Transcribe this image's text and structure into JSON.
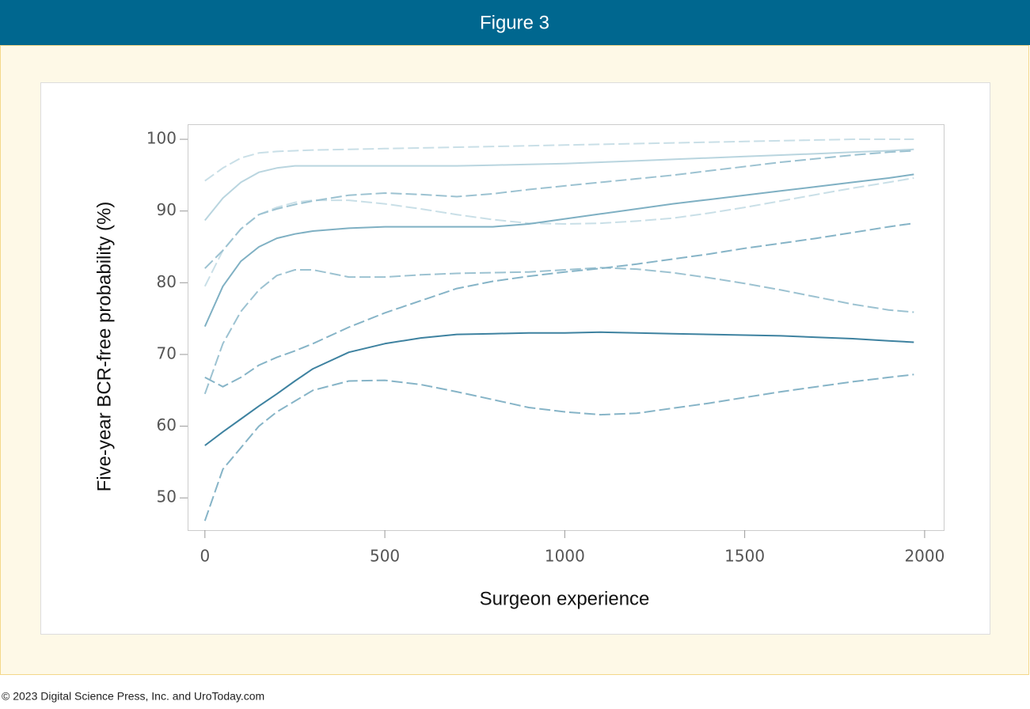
{
  "chart_data": {
    "type": "line",
    "title": "Figure 3",
    "xlabel": "Surgeon experience",
    "ylabel": "Five-year BCR-free probability (%)",
    "x": [
      0,
      50,
      100,
      150,
      200,
      250,
      300,
      400,
      500,
      600,
      700,
      800,
      900,
      1000,
      1100,
      1200,
      1300,
      1400,
      1500,
      1600,
      1700,
      1800,
      1900,
      1970
    ],
    "series": [
      {
        "color": "#b9d5df",
        "dash": false,
        "values": [
          88.7,
          91.8,
          94,
          95.4,
          96,
          96.3,
          96.3,
          96.3,
          96.3,
          96.3,
          96.3,
          96.4,
          96.5,
          96.6,
          96.8,
          97,
          97.2,
          97.4,
          97.6,
          97.8,
          98,
          98.2,
          98.4,
          98.6
        ]
      },
      {
        "color": "#c9dfe7",
        "dash": true,
        "values": [
          94.2,
          96,
          97.4,
          98.1,
          98.3,
          98.4,
          98.5,
          98.6,
          98.7,
          98.8,
          98.9,
          99,
          99.1,
          99.2,
          99.3,
          99.4,
          99.5,
          99.6,
          99.7,
          99.8,
          99.9,
          100,
          100,
          100
        ]
      },
      {
        "color": "#c9dfe7",
        "dash": true,
        "values": [
          79.5,
          84.5,
          87.5,
          89.5,
          90.5,
          91.2,
          91.5,
          91.5,
          91,
          90.3,
          89.5,
          88.8,
          88.3,
          88.2,
          88.3,
          88.6,
          89,
          89.7,
          90.5,
          91.4,
          92.3,
          93.2,
          94,
          94.6
        ]
      },
      {
        "color": "#7fb0c3",
        "dash": false,
        "values": [
          73.9,
          79.5,
          83,
          85,
          86.2,
          86.8,
          87.2,
          87.6,
          87.8,
          87.8,
          87.8,
          87.8,
          88.2,
          88.9,
          89.6,
          90.3,
          91,
          91.6,
          92.2,
          92.8,
          93.4,
          94,
          94.6,
          95.1
        ]
      },
      {
        "color": "#9cc2d1",
        "dash": true,
        "values": [
          82,
          84.5,
          87.5,
          89.5,
          90.3,
          90.9,
          91.4,
          92.2,
          92.5,
          92.3,
          92,
          92.4,
          93,
          93.5,
          94,
          94.5,
          95,
          95.6,
          96.2,
          96.8,
          97.3,
          97.8,
          98.2,
          98.4
        ]
      },
      {
        "color": "#9cc2d1",
        "dash": true,
        "values": [
          64.5,
          71.5,
          76,
          79,
          81,
          81.8,
          81.8,
          80.8,
          80.8,
          81.1,
          81.3,
          81.4,
          81.5,
          81.8,
          82.1,
          81.9,
          81.4,
          80.7,
          79.9,
          79,
          78,
          77,
          76.2,
          75.9
        ]
      },
      {
        "color": "#3e82a0",
        "dash": false,
        "values": [
          57.3,
          59.2,
          61,
          62.8,
          64.5,
          66.3,
          68,
          70.3,
          71.5,
          72.3,
          72.8,
          72.9,
          73,
          73,
          73.1,
          73,
          72.9,
          72.8,
          72.7,
          72.6,
          72.4,
          72.2,
          71.9,
          71.7
        ]
      },
      {
        "color": "#86b4c7",
        "dash": true,
        "values": [
          66.8,
          65.5,
          66.8,
          68.5,
          69.6,
          70.5,
          71.5,
          73.8,
          75.8,
          77.5,
          79.2,
          80.2,
          80.9,
          81.5,
          82,
          82.6,
          83.3,
          84,
          84.8,
          85.5,
          86.2,
          87,
          87.8,
          88.3
        ]
      },
      {
        "color": "#86b4c7",
        "dash": true,
        "values": [
          46.8,
          54,
          57,
          60,
          62,
          63.5,
          65,
          66.3,
          66.4,
          65.8,
          64.8,
          63.7,
          62.6,
          62,
          61.6,
          61.8,
          62.5,
          63.2,
          64,
          64.8,
          65.5,
          66.2,
          66.8,
          67.2
        ]
      }
    ],
    "xlim": [
      -48,
      2053
    ],
    "xticks": [
      0,
      500,
      1000,
      1500,
      2000
    ],
    "ylim": [
      45.5,
      102.1
    ],
    "yticks": [
      50,
      60,
      70,
      80,
      90,
      100
    ],
    "grid": false
  },
  "footer": "© 2023 Digital Science Press, Inc. and UroToday.com"
}
